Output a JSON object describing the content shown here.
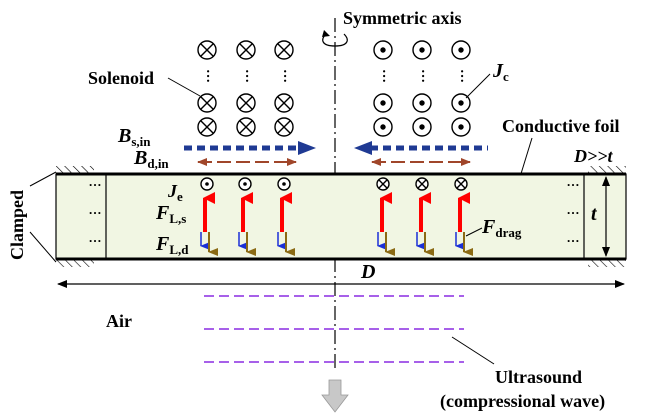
{
  "labels": {
    "symmetric_axis": "Symmetric axis",
    "solenoid": "Solenoid",
    "jc_main": "J",
    "jc_sub": "c",
    "bs_main": "B",
    "bs_sub": "s,in",
    "bd_main": "B",
    "bd_sub": "d,in",
    "conductive_foil": "Conductive foil",
    "ratio": "D>>t",
    "clamped": "Clamped",
    "je_main": "J",
    "je_sub": "e",
    "fls_main": "F",
    "fls_sub": "L,s",
    "fld_main": "F",
    "fld_sub": "L,d",
    "fdrag_main": "F",
    "fdrag_sub": "drag",
    "thickness": "t",
    "diameter": "D",
    "air": "Air",
    "ultrasound_line1": "Ultrasound",
    "ultrasound_line2": "(compressional wave)",
    "ellipsis": "…"
  },
  "colors": {
    "foil_fill": "#f1f6e3",
    "bs_arrow": "#1f3a93",
    "bd_arrow": "#a0462a",
    "fls_arrow": "#ff0000",
    "fld_arrow_brown": "#8b6a14",
    "fld_arrow_blue": "#1a2fd6",
    "wave_line": "#8a2be2",
    "down_arrow": "#c8c8c8"
  }
}
